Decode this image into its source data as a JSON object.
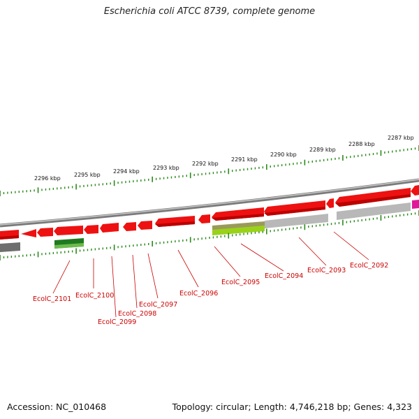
{
  "title": "Escherichia coli ATCC 8739, complete genome",
  "accession_text": "Accession: NC_010468",
  "summary_text": "Topology: circular; Length: 4,746,218 bp; Genes: 4,323",
  "scale_labels": [
    "2296 kbp",
    "2295 kbp",
    "2294 kbp",
    "2293 kbp",
    "2292 kbp",
    "2291 kbp",
    "2290 kbp",
    "2289 kbp",
    "2288 kbp",
    "2287 kbp"
  ],
  "gene_labels": [
    "EcolC_2101",
    "EcolC_2100",
    "EcolC_2099",
    "EcolC_2098",
    "EcolC_2097",
    "EcolC_2096",
    "EcolC_2095",
    "EcolC_2094",
    "EcolC_2093",
    "EcolC_2092"
  ],
  "colors": {
    "forward_gene": "#ee1111",
    "backbone": "#8a8a8a",
    "tick": "#2a8a1a",
    "label": "#cc0000",
    "rna_green": "#1f7a1f",
    "pseudo_gray": "#b8b8b8",
    "magenta": "#e0189a",
    "lime": "#9ad21a"
  }
}
